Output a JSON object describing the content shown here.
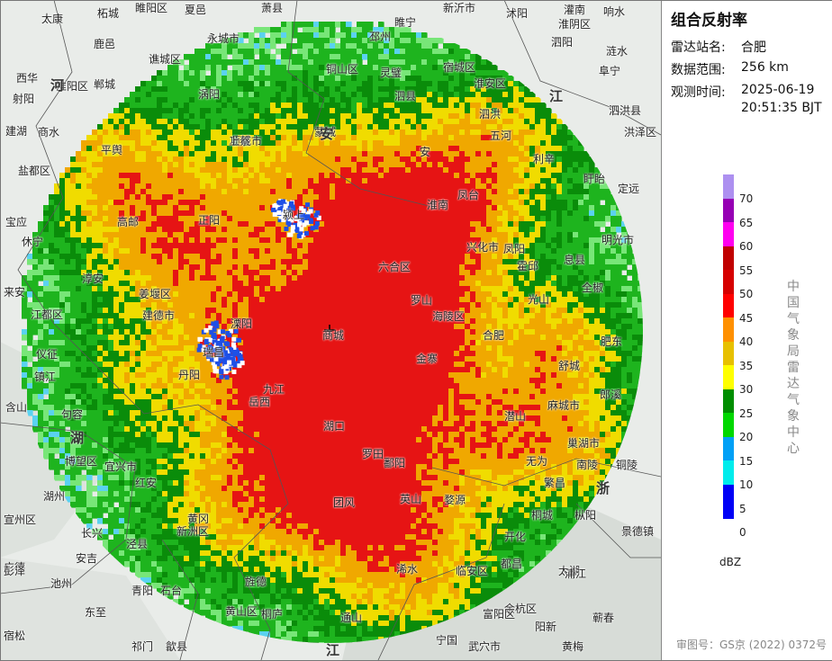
{
  "panel": {
    "title": "组合反射率",
    "station_label": "雷达站名:",
    "station_value": "合肥",
    "range_label": "数据范围:",
    "range_value": "256 km",
    "time_label": "观测时间:",
    "time_date": "2025-06-19",
    "time_clock": "20:51:35 BJT",
    "credit": "中国气象局雷达气象中心",
    "approval": "审图号：GS京 (2022) 0372号"
  },
  "legend": {
    "unit": "dBZ",
    "ticks": [
      "70",
      "65",
      "60",
      "55",
      "50",
      "45",
      "40",
      "35",
      "30",
      "25",
      "20",
      "15",
      "10",
      "5",
      "0"
    ],
    "colors": [
      "#ad90f0",
      "#9600b4",
      "#ff00f0",
      "#c00000",
      "#d60000",
      "#ff0000",
      "#ff9000",
      "#e7c000",
      "#ffff00",
      "#008e00",
      "#00d800",
      "#01a0f6",
      "#00ecec",
      "#0000f6",
      "#0000f6"
    ]
  },
  "radar": {
    "center": "合肥",
    "range_km": 256,
    "colors": {
      "blue": "#1e50e6",
      "cyan": "#5ad2f0",
      "lightgreen": "#78e678",
      "green": "#1eb41e",
      "darkgreen": "#0a8c0a",
      "yellow": "#f0dc00",
      "orange": "#f0a800",
      "red": "#e61414"
    }
  },
  "map_labels": {
    "places": [
      "太康",
      "柘城",
      "睢阳区",
      "夏邑",
      "萧县",
      "新沂市",
      "沭阳",
      "灌南",
      "响水",
      "永城市",
      "邳州",
      "睢宁",
      "泗阳",
      "涟水",
      "淮阴区",
      "鹿邑",
      "谯城区",
      "铜山区",
      "灵璧",
      "泗县",
      "宿城区",
      "淮安区",
      "阜宁",
      "西华",
      "淮阳区",
      "郸城",
      "涡阳",
      "泗洪",
      "泗洪县",
      "射阳",
      "商水",
      "项城市",
      "蒙城",
      "安",
      "五河",
      "洪泽区",
      "建湖",
      "上蔡",
      "利辛",
      "盐都区",
      "平舆",
      "凤台",
      "盱眙",
      "宝应",
      "正阳",
      "颍上",
      "淮南",
      "明光市",
      "高邮",
      "兴化市",
      "凤阳",
      "来安",
      "六合区",
      "息县",
      "定远",
      "江都区",
      "姜堰区",
      "罗山",
      "霍邱",
      "全椒",
      "仪征",
      "海陵区",
      "光山",
      "肥东",
      "镇江",
      "丹阳",
      "商城",
      "金寨",
      "合肥",
      "含山",
      "句容",
      "溧阳",
      "麻城市",
      "舒城",
      "巢湖市",
      "博望区",
      "宜兴市",
      "红安",
      "岳西",
      "无为",
      "南陵",
      "郎溪",
      "长兴",
      "新洲区",
      "罗田",
      "潜山",
      "枞阳",
      "繁昌",
      "宣州区",
      "湖州",
      "黄冈",
      "英山",
      "桐城",
      "铜陵",
      "泾县",
      "广德",
      "安吉",
      "团风",
      "浠水",
      "太湖",
      "池州",
      "青阳",
      "旌德",
      "临安区",
      "余杭区",
      "蕲春",
      "宿松",
      "东至",
      "石台",
      "黄山区",
      "宁国",
      "富阳区",
      "阳新",
      "黄梅",
      "彭泽",
      "祁门",
      "歙县",
      "桐庐",
      "通山",
      "武穴市",
      "都昌",
      "景德镇",
      "休宁",
      "淳安",
      "建德市",
      "瑞昌",
      "九江",
      "湖口",
      "鄱阳",
      "婺源",
      "开化",
      "浦江"
    ],
    "provinces": [
      "河南",
      "安徽",
      "江苏",
      "湖北",
      "浙江",
      "江西"
    ]
  }
}
